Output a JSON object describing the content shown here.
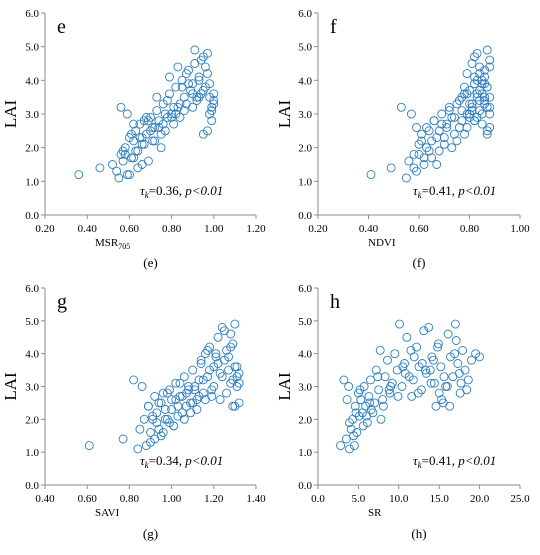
{
  "colors": {
    "marker": "#2f7fbf",
    "axis": "#8c8c8c"
  },
  "chart_data": [
    {
      "panel": "e",
      "caption": "(e)",
      "type": "scatter",
      "xlabel": "MSR",
      "xlabel_sub": "705",
      "ylabel": "LAI",
      "xlim": [
        0.2,
        1.2
      ],
      "ylim": [
        0,
        6
      ],
      "xticks": [
        "0.20",
        "0.40",
        "0.60",
        "0.80",
        "1.00",
        "1.20"
      ],
      "yticks": [
        "0.0",
        "1.0",
        "2.0",
        "3.0",
        "4.0",
        "5.0",
        "6.0"
      ],
      "stat_tau": "τ",
      "stat_sub": "k",
      "stat_value": "=0.36, ",
      "stat_p": "p<0.01",
      "x": [
        0.36,
        0.46,
        0.52,
        0.54,
        0.55,
        0.56,
        0.57,
        0.58,
        0.59,
        0.6,
        0.61,
        0.62,
        0.63,
        0.63,
        0.64,
        0.65,
        0.66,
        0.67,
        0.68,
        0.69,
        0.7,
        0.71,
        0.72,
        0.73,
        0.74,
        0.75,
        0.76,
        0.77,
        0.78,
        0.79,
        0.8,
        0.81,
        0.82,
        0.83,
        0.84,
        0.85,
        0.86,
        0.87,
        0.88,
        0.89,
        0.9,
        0.91,
        0.92,
        0.93,
        0.94,
        0.95,
        0.96,
        0.97,
        0.98,
        0.99,
        1.0,
        0.56,
        0.59,
        0.62,
        0.66,
        0.7,
        0.74,
        0.78,
        0.82,
        0.86,
        0.9,
        0.93,
        0.95,
        0.97,
        0.98,
        0.99,
        1.0,
        1.0,
        0.99,
        0.98,
        0.97,
        0.96,
        0.95,
        0.94,
        0.93,
        0.92,
        0.91,
        0.9,
        0.88,
        0.87,
        0.85,
        0.84,
        0.83,
        0.81,
        0.8,
        0.79,
        0.77,
        0.76,
        0.75,
        0.73,
        0.72,
        0.71,
        0.69,
        0.68,
        0.67,
        0.66,
        0.65,
        0.64,
        0.62,
        0.61,
        0.6,
        0.58,
        0.57
      ],
      "y": [
        1.2,
        1.4,
        1.5,
        1.3,
        1.1,
        1.8,
        1.6,
        2.0,
        1.2,
        2.3,
        1.7,
        2.2,
        2.5,
        1.9,
        1.4,
        2.7,
        2.1,
        2.8,
        2.4,
        1.6,
        2.9,
        2.6,
        2.2,
        3.1,
        2.8,
        2.0,
        3.3,
        2.5,
        2.9,
        3.6,
        3.0,
        2.7,
        3.8,
        3.2,
        2.9,
        4.0,
        3.5,
        3.3,
        4.3,
        3.7,
        3.9,
        4.5,
        3.4,
        4.1,
        3.6,
        4.7,
        3.8,
        4.2,
        3.5,
        3.1,
        3.3,
        3.2,
        3.0,
        2.7,
        2.3,
        2.5,
        2.6,
        3.4,
        3.0,
        3.1,
        3.2,
        3.5,
        2.4,
        2.5,
        3.0,
        3.2,
        3.4,
        3.6,
        2.8,
        3.9,
        4.8,
        4.4,
        3.7,
        4.6,
        4.0,
        3.5,
        4.9,
        3.6,
        3.9,
        4.2,
        3.8,
        3.3,
        4.4,
        3.2,
        2.9,
        4.1,
        3.0,
        2.7,
        2.4,
        3.5,
        2.6,
        2.2,
        2.8,
        2.9,
        2.1,
        1.5,
        2.3,
        1.9,
        1.7,
        2.4,
        1.2,
        1.8,
        1.9
      ]
    },
    {
      "panel": "f",
      "caption": "(f)",
      "type": "scatter",
      "xlabel": "NDVI",
      "xlabel_sub": "",
      "ylabel": "LAI",
      "xlim": [
        0.2,
        1.0
      ],
      "ylim": [
        0,
        6
      ],
      "xticks": [
        "0.20",
        "0.40",
        "0.60",
        "0.80",
        "1.00"
      ],
      "yticks": [
        "0.0",
        "1.0",
        "2.0",
        "3.0",
        "4.0",
        "5.0",
        "6.0"
      ],
      "stat_tau": "τ",
      "stat_sub": "k",
      "stat_value": "=0.41, ",
      "stat_p": "p<0.01",
      "x": [
        0.41,
        0.49,
        0.53,
        0.55,
        0.56,
        0.57,
        0.58,
        0.59,
        0.6,
        0.61,
        0.62,
        0.63,
        0.64,
        0.65,
        0.66,
        0.67,
        0.68,
        0.69,
        0.7,
        0.71,
        0.72,
        0.73,
        0.74,
        0.75,
        0.76,
        0.77,
        0.78,
        0.79,
        0.8,
        0.81,
        0.82,
        0.83,
        0.84,
        0.85,
        0.86,
        0.87,
        0.88,
        0.88,
        0.87,
        0.86,
        0.85,
        0.84,
        0.83,
        0.82,
        0.81,
        0.8,
        0.79,
        0.78,
        0.77,
        0.76,
        0.88,
        0.87,
        0.86,
        0.85,
        0.84,
        0.83,
        0.82,
        0.81,
        0.8,
        0.79,
        0.78,
        0.77,
        0.75,
        0.74,
        0.73,
        0.72,
        0.71,
        0.7,
        0.69,
        0.68,
        0.67,
        0.66,
        0.65,
        0.64,
        0.63,
        0.62,
        0.61,
        0.6,
        0.59,
        0.58,
        0.88,
        0.87,
        0.86,
        0.85,
        0.84,
        0.83,
        0.82,
        0.8,
        0.86,
        0.87,
        0.88,
        0.85,
        0.84,
        0.83,
        0.86,
        0.87,
        0.88,
        0.82,
        0.81,
        0.79
      ],
      "y": [
        1.2,
        1.4,
        3.2,
        1.1,
        1.6,
        3.0,
        1.8,
        1.3,
        2.1,
        2.4,
        1.7,
        2.6,
        1.9,
        2.2,
        2.8,
        1.5,
        2.5,
        3.0,
        2.3,
        2.7,
        3.1,
        2.0,
        2.9,
        3.3,
        2.6,
        3.5,
        2.4,
        3.0,
        3.7,
        3.2,
        2.8,
        4.0,
        3.4,
        3.6,
        4.3,
        3.8,
        4.6,
        3.2,
        4.9,
        4.1,
        3.9,
        4.4,
        3.5,
        4.7,
        3.1,
        2.9,
        4.2,
        3.6,
        2.8,
        3.4,
        3.0,
        2.5,
        3.3,
        2.7,
        3.7,
        4.8,
        3.9,
        4.5,
        3.3,
        2.6,
        3.8,
        3.1,
        2.2,
        2.4,
        2.9,
        3.2,
        2.6,
        2.1,
        2.7,
        1.9,
        2.3,
        2.8,
        1.7,
        2.5,
        2.0,
        1.5,
        2.2,
        1.8,
        2.6,
        1.4,
        3.5,
        2.4,
        3.9,
        4.0,
        3.1,
        3.6,
        2.8,
        3.0,
        3.4,
        3.2,
        2.6,
        3.0,
        4.2,
        2.9,
        3.5,
        3.8,
        4.4,
        4.1,
        3.3,
        3.6
      ]
    },
    {
      "panel": "g",
      "caption": "(g)",
      "type": "scatter",
      "xlabel": "SAVI",
      "xlabel_sub": "",
      "ylabel": "LAI",
      "xlim": [
        0.4,
        1.4
      ],
      "ylim": [
        0,
        6
      ],
      "xticks": [
        "0.40",
        "0.60",
        "0.80",
        "1.00",
        "1.20",
        "1.40"
      ],
      "yticks": [
        "0.0",
        "1.0",
        "2.0",
        "3.0",
        "4.0",
        "5.0",
        "6.0"
      ],
      "stat_tau": "τ",
      "stat_sub": "k",
      "stat_value": "=0.34, ",
      "stat_p": "p<0.01",
      "x": [
        0.61,
        0.77,
        0.82,
        0.84,
        0.85,
        0.86,
        0.87,
        0.88,
        0.89,
        0.9,
        0.91,
        0.92,
        0.93,
        0.94,
        0.95,
        0.96,
        0.97,
        0.98,
        0.99,
        1.0,
        1.01,
        1.02,
        1.03,
        1.04,
        1.05,
        1.06,
        1.07,
        1.08,
        1.09,
        1.1,
        1.11,
        1.12,
        1.13,
        1.14,
        1.15,
        1.16,
        1.17,
        1.18,
        1.19,
        1.2,
        1.21,
        1.22,
        1.23,
        1.24,
        1.25,
        1.26,
        1.27,
        1.28,
        1.29,
        1.3,
        1.31,
        1.32,
        1.32,
        1.31,
        1.3,
        1.29,
        1.28,
        1.27,
        1.26,
        1.25,
        1.24,
        1.23,
        1.22,
        1.21,
        1.2,
        1.19,
        1.18,
        1.17,
        1.16,
        1.15,
        1.14,
        1.13,
        1.12,
        1.11,
        1.1,
        1.09,
        1.08,
        1.07,
        1.06,
        1.05,
        1.04,
        1.03,
        1.02,
        1.01,
        1.0,
        0.99,
        0.98,
        0.97,
        0.96,
        0.95,
        0.94,
        0.93,
        0.92,
        0.91,
        0.9,
        0.89,
        1.3,
        1.31,
        1.32,
        1.29,
        1.28
      ],
      "y": [
        1.2,
        1.4,
        3.2,
        1.1,
        1.7,
        3.0,
        2.0,
        1.2,
        2.4,
        1.6,
        2.1,
        2.7,
        1.9,
        2.5,
        1.5,
        2.8,
        2.3,
        2.0,
        2.9,
        2.6,
        1.8,
        3.1,
        2.4,
        2.7,
        2.2,
        3.3,
        2.8,
        3.0,
        2.5,
        3.5,
        2.9,
        2.6,
        3.2,
        3.7,
        2.8,
        4.0,
        3.3,
        4.2,
        2.7,
        3.6,
        3.9,
        4.5,
        3.4,
        4.8,
        3.8,
        4.1,
        3.5,
        4.6,
        3.2,
        4.9,
        3.0,
        3.4,
        2.5,
        3.6,
        2.4,
        4.3,
        3.1,
        3.9,
        2.8,
        4.7,
        3.3,
        2.6,
        3.7,
        4.0,
        3.0,
        2.9,
        3.5,
        4.1,
        2.6,
        3.2,
        3.8,
        2.7,
        2.3,
        3.0,
        2.5,
        2.2,
        2.9,
        2.4,
        2.0,
        2.7,
        3.1,
        2.1,
        2.6,
        1.8,
        2.3,
        1.9,
        2.8,
        2.0,
        1.6,
        2.5,
        1.7,
        2.2,
        1.4,
        2.0,
        1.3,
        2.4,
        3.6,
        3.3,
        3.1,
        2.4,
        4.2
      ]
    },
    {
      "panel": "h",
      "caption": "(h)",
      "type": "scatter",
      "xlabel": "SR",
      "xlabel_sub": "",
      "ylabel": "LAI",
      "xlim": [
        0,
        25
      ],
      "ylim": [
        0,
        6
      ],
      "xticks": [
        "0.0",
        "5.0",
        "10.0",
        "15.0",
        "20.0",
        "25.0"
      ],
      "yticks": [
        "0.0",
        "1.0",
        "2.0",
        "3.0",
        "4.0",
        "5.0",
        "6.0"
      ],
      "stat_tau": "τ",
      "stat_sub": "k",
      "stat_value": "=0.41, ",
      "stat_p": "p<0.01",
      "x": [
        2.8,
        3.2,
        3.5,
        3.8,
        3.9,
        4.1,
        4.3,
        4.5,
        4.6,
        4.8,
        5.0,
        5.1,
        5.3,
        5.5,
        5.7,
        5.9,
        6.1,
        6.3,
        6.5,
        6.8,
        7.0,
        7.2,
        7.5,
        7.7,
        8.0,
        8.3,
        8.6,
        8.9,
        9.2,
        9.5,
        9.8,
        10.1,
        10.4,
        10.7,
        11.0,
        11.3,
        11.6,
        11.9,
        12.2,
        12.5,
        12.8,
        13.1,
        13.4,
        13.7,
        14.0,
        14.3,
        14.6,
        14.9,
        15.2,
        15.5,
        15.8,
        16.1,
        16.4,
        16.7,
        17.0,
        17.3,
        17.6,
        17.9,
        18.2,
        18.6,
        19.0,
        19.5,
        20.0,
        3.6,
        4.4,
        5.2,
        6.0,
        6.6,
        7.4,
        8.1,
        9.0,
        9.9,
        10.8,
        11.5,
        12.4,
        13.3,
        14.1,
        14.8,
        15.6,
        16.3,
        17.1,
        17.7,
        18.4,
        3.9,
        4.7,
        5.6,
        6.4,
        7.8,
        8.8,
        10.5,
        11.8,
        12.9,
        13.9,
        15.0,
        16.0,
        16.9,
        17.5,
        15.3,
        14.4
      ],
      "y": [
        1.2,
        3.2,
        1.4,
        3.0,
        1.1,
        1.7,
        2.0,
        1.2,
        2.4,
        1.6,
        2.8,
        2.1,
        2.6,
        2.2,
        3.0,
        2.4,
        1.9,
        2.7,
        3.2,
        2.2,
        2.5,
        3.5,
        2.9,
        4.1,
        2.6,
        3.3,
        3.8,
        2.8,
        3.1,
        4.0,
        3.5,
        4.9,
        3.0,
        3.7,
        4.5,
        3.3,
        2.7,
        3.9,
        4.2,
        3.6,
        2.9,
        4.7,
        3.4,
        4.8,
        3.1,
        3.8,
        2.4,
        4.3,
        3.6,
        2.5,
        3.0,
        4.6,
        3.9,
        3.3,
        4.9,
        3.7,
        2.8,
        4.1,
        3.5,
        3.2,
        3.8,
        4.0,
        3.9,
        2.6,
        1.5,
        2.9,
        2.1,
        2.3,
        3.3,
        2.4,
        3.0,
        2.7,
        3.4,
        4.1,
        2.8,
        3.5,
        3.9,
        4.2,
        3.3,
        2.4,
        4.4,
        3.1,
        2.9,
        1.9,
        2.2,
        1.8,
        2.5,
        2.0,
        2.9,
        3.6,
        3.2,
        3.7,
        3.5,
        2.8,
        3.0,
        4.0,
        3.4,
        2.6,
        3.1
      ]
    }
  ]
}
